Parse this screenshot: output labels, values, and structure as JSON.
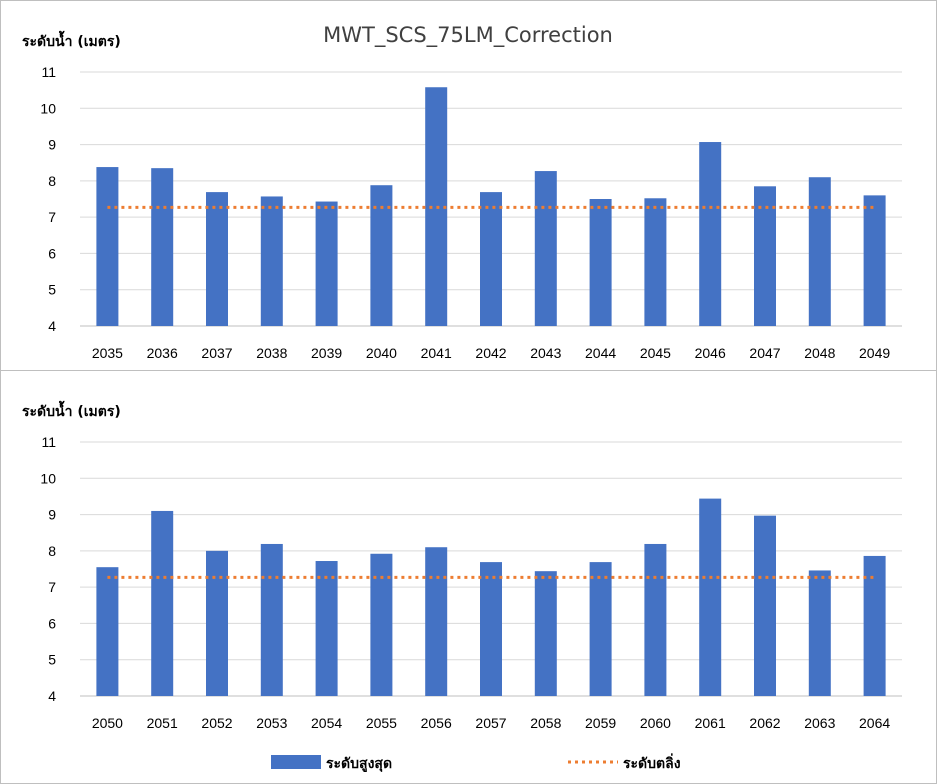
{
  "chart_data": [
    {
      "type": "bar",
      "title": "MWT_SCS_75LM_Correction",
      "ylabel": "ระดับน้ำ (เมตร)",
      "ylim": [
        4,
        11
      ],
      "yticks": [
        4,
        5,
        6,
        7,
        8,
        9,
        10,
        11
      ],
      "categories": [
        "2035",
        "2036",
        "2037",
        "2038",
        "2039",
        "2040",
        "2041",
        "2042",
        "2043",
        "2044",
        "2045",
        "2046",
        "2047",
        "2048",
        "2049"
      ],
      "series": [
        {
          "name": "ระดับสูงสุด",
          "kind": "bar",
          "color": "#4472c4",
          "values": [
            8.38,
            8.35,
            7.69,
            7.57,
            7.43,
            7.88,
            10.58,
            7.69,
            8.27,
            7.5,
            7.52,
            9.07,
            7.85,
            8.1,
            7.6
          ]
        },
        {
          "name": "ระดับตลิ่ง",
          "kind": "line",
          "color": "#ed7d31",
          "style": "dotted",
          "values": [
            7.27,
            7.27,
            7.27,
            7.27,
            7.27,
            7.27,
            7.27,
            7.27,
            7.27,
            7.27,
            7.27,
            7.27,
            7.27,
            7.27,
            7.27
          ]
        }
      ],
      "grid": true
    },
    {
      "type": "bar",
      "title": "",
      "ylabel": "ระดับน้ำ (เมตร)",
      "ylim": [
        4,
        11
      ],
      "yticks": [
        4,
        5,
        6,
        7,
        8,
        9,
        10,
        11
      ],
      "categories": [
        "2050",
        "2051",
        "2052",
        "2053",
        "2054",
        "2055",
        "2056",
        "2057",
        "2058",
        "2059",
        "2060",
        "2061",
        "2062",
        "2063",
        "2064"
      ],
      "series": [
        {
          "name": "ระดับสูงสุด",
          "kind": "bar",
          "color": "#4472c4",
          "values": [
            7.55,
            9.1,
            8.0,
            8.19,
            7.72,
            7.92,
            8.1,
            7.69,
            7.44,
            7.69,
            8.19,
            9.44,
            8.97,
            7.46,
            7.86
          ]
        },
        {
          "name": "ระดับตลิ่ง",
          "kind": "line",
          "color": "#ed7d31",
          "style": "dotted",
          "values": [
            7.27,
            7.27,
            7.27,
            7.27,
            7.27,
            7.27,
            7.27,
            7.27,
            7.27,
            7.27,
            7.27,
            7.27,
            7.27,
            7.27,
            7.27
          ]
        }
      ],
      "grid": true
    }
  ],
  "legend": {
    "placement": "bottom",
    "items": [
      {
        "label": "ระดับสูงสุด",
        "kind": "bar",
        "color": "#4472c4"
      },
      {
        "label": "ระดับตลิ่ง",
        "kind": "dotted-line",
        "color": "#ed7d31"
      }
    ]
  }
}
